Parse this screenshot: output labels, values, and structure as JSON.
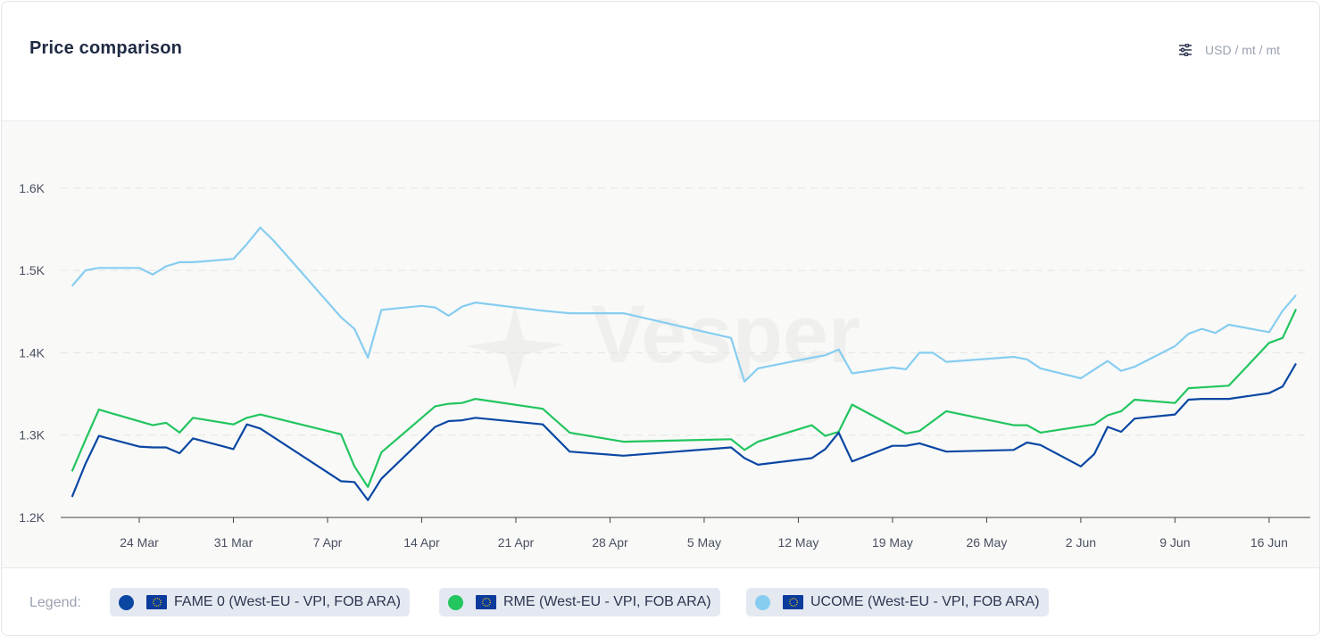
{
  "header": {
    "title": "Price comparison",
    "unit": "USD / mt / mt",
    "settings_icon": "sliders-icon"
  },
  "watermark": "Vesper",
  "legend": {
    "label": "Legend:",
    "items": [
      {
        "label": "FAME 0 (West-EU - VPI, FOB ARA)",
        "color": "#0a47a3",
        "icon": "eu-flag-icon"
      },
      {
        "label": "RME (West-EU - VPI, FOB ARA)",
        "color": "#22c55e",
        "icon": "eu-flag-icon"
      },
      {
        "label": "UCOME (West-EU - VPI, FOB ARA)",
        "color": "#86cdf0",
        "icon": "eu-flag-icon"
      }
    ]
  },
  "chart_data": {
    "type": "line",
    "title": "Price comparison",
    "ylabel": "USD / mt / mt",
    "ylim": [
      1200,
      1650
    ],
    "y_ticks": [
      {
        "v": 1200,
        "label": "1.2K"
      },
      {
        "v": 1300,
        "label": "1.3K"
      },
      {
        "v": 1400,
        "label": "1.4K"
      },
      {
        "v": 1500,
        "label": "1.5K"
      },
      {
        "v": 1600,
        "label": "1.6K"
      }
    ],
    "x_ticks": [
      {
        "d": "03-24",
        "label": "24 Mar"
      },
      {
        "d": "03-31",
        "label": "31 Mar"
      },
      {
        "d": "04-07",
        "label": "7 Apr"
      },
      {
        "d": "04-14",
        "label": "14 Apr"
      },
      {
        "d": "04-21",
        "label": "21 Apr"
      },
      {
        "d": "04-28",
        "label": "28 Apr"
      },
      {
        "d": "05-05",
        "label": "5 May"
      },
      {
        "d": "05-12",
        "label": "12 May"
      },
      {
        "d": "05-19",
        "label": "19 May"
      },
      {
        "d": "05-26",
        "label": "26 May"
      },
      {
        "d": "06-02",
        "label": "2 Jun"
      },
      {
        "d": "06-09",
        "label": "9 Jun"
      },
      {
        "d": "06-16",
        "label": "16 Jun"
      }
    ],
    "grid": true,
    "legend_position": "bottom",
    "series": [
      {
        "name": "FAME 0 (West-EU - VPI, FOB ARA)",
        "color": "#0a47a3",
        "points": [
          [
            "03-19",
            1225
          ],
          [
            "03-20",
            1265
          ],
          [
            "03-21",
            1299
          ],
          [
            "03-24",
            1286
          ],
          [
            "03-25",
            1285
          ],
          [
            "03-26",
            1285
          ],
          [
            "03-27",
            1278
          ],
          [
            "03-28",
            1296
          ],
          [
            "03-31",
            1283
          ],
          [
            "04-01",
            1313
          ],
          [
            "04-02",
            1308
          ],
          [
            "04-08",
            1244
          ],
          [
            "04-09",
            1243
          ],
          [
            "04-10",
            1221
          ],
          [
            "04-11",
            1247
          ],
          [
            "04-15",
            1310
          ],
          [
            "04-16",
            1317
          ],
          [
            "04-17",
            1318
          ],
          [
            "04-18",
            1321
          ],
          [
            "04-23",
            1313
          ],
          [
            "04-25",
            1280
          ],
          [
            "04-29",
            1275
          ],
          [
            "05-07",
            1285
          ],
          [
            "05-08",
            1272
          ],
          [
            "05-09",
            1264
          ],
          [
            "05-13",
            1272
          ],
          [
            "05-14",
            1283
          ],
          [
            "05-15",
            1303
          ],
          [
            "05-16",
            1268
          ],
          [
            "05-19",
            1287
          ],
          [
            "05-20",
            1287
          ],
          [
            "05-21",
            1290
          ],
          [
            "05-23",
            1280
          ],
          [
            "05-28",
            1282
          ],
          [
            "05-29",
            1291
          ],
          [
            "05-30",
            1288
          ],
          [
            "06-02",
            1262
          ],
          [
            "06-03",
            1277
          ],
          [
            "06-04",
            1310
          ],
          [
            "06-05",
            1304
          ],
          [
            "06-06",
            1320
          ],
          [
            "06-09",
            1325
          ],
          [
            "06-10",
            1343
          ],
          [
            "06-11",
            1344
          ],
          [
            "06-13",
            1344
          ],
          [
            "06-16",
            1351
          ],
          [
            "06-17",
            1359
          ],
          [
            "06-18",
            1387
          ]
        ]
      },
      {
        "name": "RME (West-EU - VPI, FOB ARA)",
        "color": "#22c55e",
        "points": [
          [
            "03-19",
            1256
          ],
          [
            "03-20",
            1294
          ],
          [
            "03-21",
            1331
          ],
          [
            "03-25",
            1312
          ],
          [
            "03-26",
            1315
          ],
          [
            "03-27",
            1303
          ],
          [
            "03-28",
            1321
          ],
          [
            "03-31",
            1313
          ],
          [
            "04-01",
            1321
          ],
          [
            "04-02",
            1325
          ],
          [
            "04-08",
            1301
          ],
          [
            "04-09",
            1262
          ],
          [
            "04-10",
            1237
          ],
          [
            "04-11",
            1279
          ],
          [
            "04-15",
            1335
          ],
          [
            "04-16",
            1338
          ],
          [
            "04-17",
            1339
          ],
          [
            "04-18",
            1344
          ],
          [
            "04-23",
            1332
          ],
          [
            "04-25",
            1303
          ],
          [
            "04-29",
            1292
          ],
          [
            "05-07",
            1295
          ],
          [
            "05-08",
            1282
          ],
          [
            "05-09",
            1292
          ],
          [
            "05-13",
            1312
          ],
          [
            "05-14",
            1299
          ],
          [
            "05-15",
            1304
          ],
          [
            "05-16",
            1337
          ],
          [
            "05-20",
            1302
          ],
          [
            "05-21",
            1305
          ],
          [
            "05-23",
            1329
          ],
          [
            "05-28",
            1312
          ],
          [
            "05-29",
            1312
          ],
          [
            "05-30",
            1303
          ],
          [
            "06-03",
            1313
          ],
          [
            "06-04",
            1324
          ],
          [
            "06-05",
            1329
          ],
          [
            "06-06",
            1343
          ],
          [
            "06-09",
            1339
          ],
          [
            "06-10",
            1357
          ],
          [
            "06-11",
            1358
          ],
          [
            "06-13",
            1360
          ],
          [
            "06-16",
            1412
          ],
          [
            "06-17",
            1418
          ],
          [
            "06-18",
            1453
          ]
        ]
      },
      {
        "name": "UCOME (West-EU - VPI, FOB ARA)",
        "color": "#86cdf0",
        "points": [
          [
            "03-19",
            1481
          ],
          [
            "03-20",
            1500
          ],
          [
            "03-21",
            1503
          ],
          [
            "03-24",
            1503
          ],
          [
            "03-25",
            1495
          ],
          [
            "03-26",
            1505
          ],
          [
            "03-27",
            1510
          ],
          [
            "03-28",
            1510
          ],
          [
            "03-31",
            1514
          ],
          [
            "04-01",
            1532
          ],
          [
            "04-02",
            1552
          ],
          [
            "04-03",
            1536
          ],
          [
            "04-08",
            1443
          ],
          [
            "04-09",
            1429
          ],
          [
            "04-10",
            1394
          ],
          [
            "04-11",
            1452
          ],
          [
            "04-14",
            1457
          ],
          [
            "04-15",
            1455
          ],
          [
            "04-16",
            1445
          ],
          [
            "04-17",
            1456
          ],
          [
            "04-18",
            1461
          ],
          [
            "04-23",
            1451
          ],
          [
            "04-25",
            1448
          ],
          [
            "04-29",
            1448
          ],
          [
            "05-07",
            1418
          ],
          [
            "05-08",
            1365
          ],
          [
            "05-09",
            1381
          ],
          [
            "05-13",
            1394
          ],
          [
            "05-14",
            1397
          ],
          [
            "05-15",
            1404
          ],
          [
            "05-16",
            1375
          ],
          [
            "05-19",
            1382
          ],
          [
            "05-20",
            1380
          ],
          [
            "05-21",
            1400
          ],
          [
            "05-22",
            1400
          ],
          [
            "05-23",
            1389
          ],
          [
            "05-28",
            1395
          ],
          [
            "05-29",
            1392
          ],
          [
            "05-30",
            1381
          ],
          [
            "06-02",
            1369
          ],
          [
            "06-04",
            1390
          ],
          [
            "06-05",
            1378
          ],
          [
            "06-06",
            1383
          ],
          [
            "06-09",
            1408
          ],
          [
            "06-10",
            1423
          ],
          [
            "06-11",
            1429
          ],
          [
            "06-12",
            1424
          ],
          [
            "06-13",
            1434
          ],
          [
            "06-16",
            1425
          ],
          [
            "06-17",
            1451
          ],
          [
            "06-18",
            1470
          ]
        ]
      }
    ]
  }
}
